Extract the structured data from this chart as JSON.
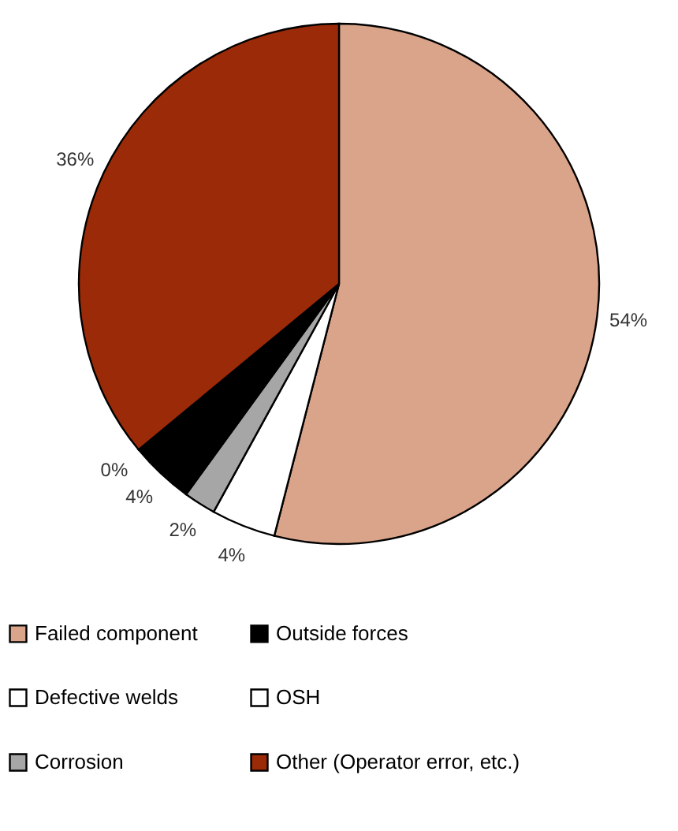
{
  "chart_data": {
    "type": "pie",
    "categories": [
      "Failed component",
      "Defective welds",
      "Corrosion",
      "Outside forces",
      "OSH",
      "Other (Operator error, etc.)"
    ],
    "values": [
      54,
      4,
      2,
      4,
      0,
      36
    ],
    "colors": [
      "#d9a48a",
      "#ffffff",
      "#a6a6a6",
      "#000000",
      "#ffffff",
      "#9b2b08"
    ],
    "value_labels": [
      "54%",
      "4%",
      "2%",
      "4%",
      "0%",
      "36%"
    ],
    "legend": "bottom"
  }
}
